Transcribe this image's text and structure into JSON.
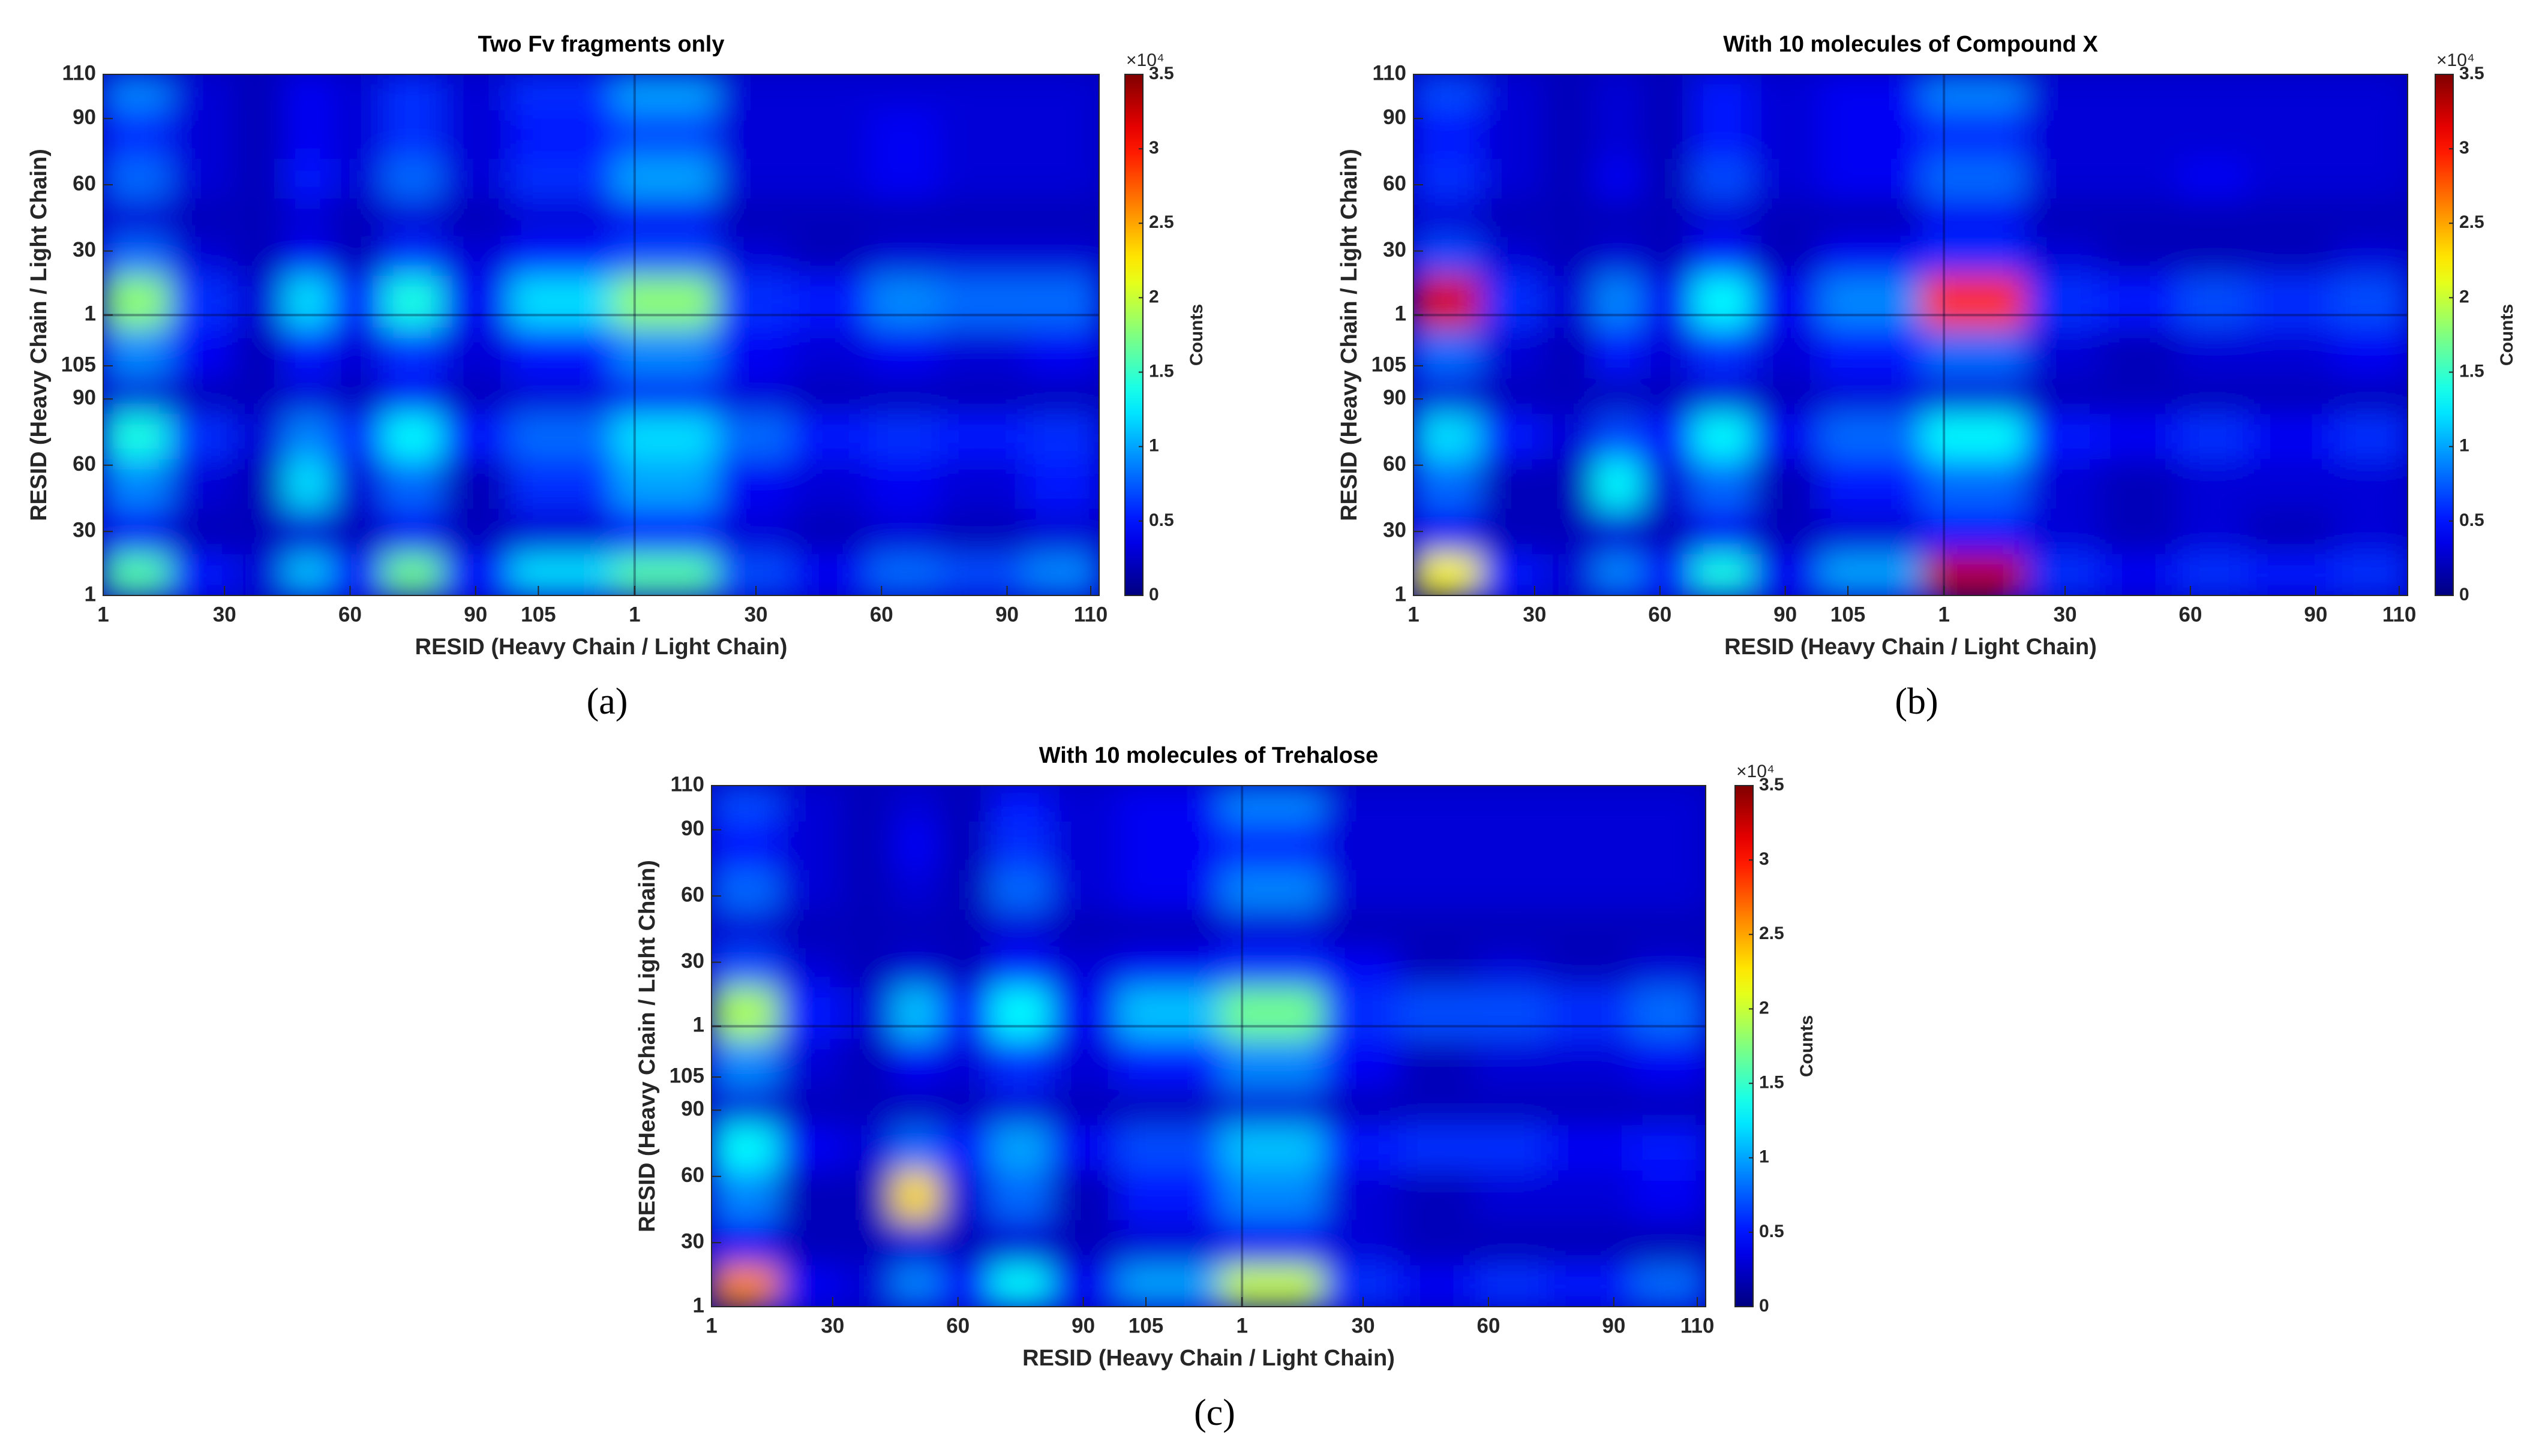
{
  "chart_data": [
    {
      "type": "heatmap",
      "title": "Two Fv fragments only",
      "panel_label": "(a)",
      "xlabel": "RESID (Heavy Chain / Light Chain)",
      "ylabel": "RESID (Heavy Chain / Light Chain)",
      "x": [
        10,
        24,
        40,
        49,
        62,
        74,
        90,
        107,
        139,
        156,
        175,
        193,
        209,
        234
      ],
      "y": [
        10,
        30,
        51,
        75,
        92,
        108,
        137,
        155,
        172,
        190,
        208,
        234
      ],
      "values": [
        [
          1.6,
          0.5,
          0.3,
          1.1,
          0.5,
          1.7,
          0.5,
          1.2,
          1.6,
          0.7,
          0.4,
          0.8,
          0.7,
          0.9
        ],
        [
          0.4,
          0.2,
          0.2,
          0.3,
          0.2,
          0.4,
          0.2,
          0.3,
          0.5,
          0.3,
          0.2,
          0.3,
          0.2,
          0.3
        ],
        [
          0.9,
          0.3,
          0.2,
          1.2,
          0.3,
          0.8,
          0.2,
          0.6,
          1.0,
          0.4,
          0.3,
          0.4,
          0.3,
          0.5
        ],
        [
          1.4,
          0.6,
          0.3,
          0.9,
          0.6,
          1.3,
          0.5,
          0.8,
          1.2,
          0.8,
          0.5,
          0.6,
          0.5,
          0.6
        ],
        [
          0.3,
          0.2,
          0.2,
          0.3,
          0.2,
          0.4,
          0.2,
          0.3,
          0.4,
          0.3,
          0.2,
          0.2,
          0.2,
          0.2
        ],
        [
          0.9,
          0.4,
          0.2,
          0.5,
          0.3,
          0.6,
          0.3,
          0.5,
          0.9,
          0.4,
          0.3,
          0.4,
          0.3,
          0.4
        ],
        [
          1.8,
          0.6,
          0.3,
          1.2,
          0.5,
          1.4,
          0.4,
          1.2,
          1.8,
          0.6,
          0.5,
          0.9,
          0.8,
          0.8
        ],
        [
          0.8,
          0.3,
          0.2,
          0.4,
          0.2,
          0.6,
          0.3,
          0.5,
          0.7,
          0.3,
          0.2,
          0.3,
          0.3,
          0.3
        ],
        [
          0.3,
          0.2,
          0.2,
          0.3,
          0.2,
          0.3,
          0.2,
          0.3,
          0.4,
          0.2,
          0.2,
          0.2,
          0.2,
          0.2
        ],
        [
          0.8,
          0.3,
          0.2,
          0.5,
          0.3,
          0.8,
          0.3,
          0.6,
          1.0,
          0.3,
          0.3,
          0.4,
          0.3,
          0.3
        ],
        [
          0.6,
          0.3,
          0.2,
          0.4,
          0.3,
          0.6,
          0.3,
          0.5,
          0.7,
          0.3,
          0.3,
          0.4,
          0.3,
          0.3
        ],
        [
          0.9,
          0.3,
          0.2,
          0.4,
          0.3,
          0.6,
          0.3,
          0.6,
          1.0,
          0.3,
          0.3,
          0.3,
          0.3,
          0.3
        ]
      ],
      "xlim": [
        1,
        239
      ],
      "ylim": [
        1,
        237
      ],
      "xticks": [
        1,
        30,
        60,
        90,
        105,
        {
          "value": 128,
          "label": "1"
        },
        {
          "value": 157,
          "label": "30"
        },
        {
          "value": 187,
          "label": "60"
        },
        {
          "value": 217,
          "label": "90"
        },
        {
          "value": 237,
          "label": "110"
        }
      ],
      "yticks": [
        1,
        30,
        60,
        90,
        105,
        {
          "value": 128,
          "label": "1"
        },
        {
          "value": 157,
          "label": "30"
        },
        {
          "value": 187,
          "label": "60"
        },
        {
          "value": 217,
          "label": "90"
        },
        {
          "value": 237,
          "label": "110"
        }
      ],
      "colormap": "jet",
      "zlim": [
        0,
        3.5
      ],
      "zticks": [
        0,
        0.5,
        1,
        1.5,
        2,
        2.5,
        3,
        3.5
      ],
      "colorbar_label": "Counts",
      "colorbar_exponent": "×10⁴"
    },
    {
      "type": "heatmap",
      "title": "With 10 molecules of Compound X",
      "panel_label": "(b)",
      "xlabel": "RESID (Heavy Chain / Light Chain)",
      "ylabel": "RESID (Heavy Chain / Light Chain)",
      "x": [
        10,
        24,
        40,
        49,
        62,
        74,
        90,
        107,
        139,
        156,
        175,
        193,
        209,
        234
      ],
      "y": [
        10,
        30,
        51,
        75,
        92,
        108,
        137,
        155,
        172,
        190,
        208,
        234
      ],
      "values": [
        [
          2.2,
          0.5,
          0.3,
          0.9,
          0.5,
          1.4,
          0.4,
          1.0,
          3.3,
          0.6,
          0.4,
          0.6,
          0.5,
          0.6
        ],
        [
          0.4,
          0.2,
          0.2,
          0.3,
          0.2,
          0.4,
          0.2,
          0.3,
          0.5,
          0.3,
          0.2,
          0.3,
          0.2,
          0.3
        ],
        [
          0.8,
          0.2,
          0.2,
          1.3,
          0.3,
          0.8,
          0.2,
          0.5,
          0.8,
          0.3,
          0.2,
          0.3,
          0.3,
          0.3
        ],
        [
          1.2,
          0.5,
          0.3,
          0.7,
          0.5,
          1.3,
          0.4,
          0.8,
          1.3,
          0.5,
          0.4,
          0.6,
          0.4,
          0.6
        ],
        [
          0.3,
          0.2,
          0.2,
          0.2,
          0.2,
          0.3,
          0.2,
          0.3,
          0.3,
          0.2,
          0.2,
          0.2,
          0.2,
          0.2
        ],
        [
          0.8,
          0.3,
          0.2,
          0.5,
          0.3,
          0.6,
          0.3,
          0.5,
          0.8,
          0.3,
          0.2,
          0.3,
          0.3,
          0.4
        ],
        [
          3.2,
          0.6,
          0.3,
          0.9,
          0.4,
          1.3,
          0.4,
          0.9,
          2.9,
          0.6,
          0.5,
          0.7,
          0.6,
          0.7
        ],
        [
          0.7,
          0.3,
          0.2,
          0.3,
          0.2,
          0.5,
          0.2,
          0.4,
          0.6,
          0.3,
          0.2,
          0.2,
          0.2,
          0.3
        ],
        [
          0.3,
          0.2,
          0.2,
          0.2,
          0.2,
          0.3,
          0.2,
          0.2,
          0.4,
          0.2,
          0.2,
          0.2,
          0.2,
          0.2
        ],
        [
          0.6,
          0.3,
          0.2,
          0.4,
          0.2,
          0.7,
          0.3,
          0.4,
          0.8,
          0.3,
          0.3,
          0.4,
          0.3,
          0.3
        ],
        [
          0.5,
          0.3,
          0.2,
          0.3,
          0.2,
          0.5,
          0.3,
          0.4,
          0.6,
          0.3,
          0.3,
          0.3,
          0.3,
          0.3
        ],
        [
          0.7,
          0.3,
          0.2,
          0.3,
          0.2,
          0.5,
          0.3,
          0.4,
          0.9,
          0.3,
          0.3,
          0.3,
          0.3,
          0.3
        ]
      ],
      "xlim": [
        1,
        239
      ],
      "ylim": [
        1,
        237
      ],
      "xticks": [
        1,
        30,
        60,
        90,
        105,
        {
          "value": 128,
          "label": "1"
        },
        {
          "value": 157,
          "label": "30"
        },
        {
          "value": 187,
          "label": "60"
        },
        {
          "value": 217,
          "label": "90"
        },
        {
          "value": 237,
          "label": "110"
        }
      ],
      "yticks": [
        1,
        30,
        60,
        90,
        105,
        {
          "value": 128,
          "label": "1"
        },
        {
          "value": 157,
          "label": "30"
        },
        {
          "value": 187,
          "label": "60"
        },
        {
          "value": 217,
          "label": "90"
        },
        {
          "value": 237,
          "label": "110"
        }
      ],
      "colormap": "jet",
      "zlim": [
        0,
        3.5
      ],
      "zticks": [
        0,
        0.5,
        1,
        1.5,
        2,
        2.5,
        3,
        3.5
      ],
      "colorbar_label": "Counts",
      "colorbar_exponent": "×10⁴"
    },
    {
      "type": "heatmap",
      "title": "With 10 molecules of Trehalose",
      "panel_label": "(c)",
      "xlabel": "RESID (Heavy Chain / Light Chain)",
      "ylabel": "RESID (Heavy Chain / Light Chain)",
      "x": [
        10,
        24,
        40,
        49,
        62,
        74,
        90,
        107,
        139,
        156,
        175,
        193,
        209,
        234
      ],
      "y": [
        10,
        30,
        51,
        75,
        92,
        108,
        137,
        155,
        172,
        190,
        208,
        234
      ],
      "values": [
        [
          2.6,
          0.4,
          0.3,
          0.9,
          0.5,
          1.3,
          0.4,
          1.0,
          2.0,
          0.6,
          0.4,
          0.6,
          0.5,
          0.8
        ],
        [
          0.4,
          0.2,
          0.2,
          0.3,
          0.2,
          0.3,
          0.2,
          0.3,
          0.4,
          0.3,
          0.2,
          0.2,
          0.2,
          0.2
        ],
        [
          0.9,
          0.2,
          0.2,
          2.3,
          0.3,
          0.8,
          0.2,
          0.5,
          0.9,
          0.3,
          0.2,
          0.3,
          0.3,
          0.4
        ],
        [
          1.3,
          0.4,
          0.3,
          0.8,
          0.5,
          1.0,
          0.4,
          0.7,
          1.1,
          0.5,
          0.6,
          0.6,
          0.4,
          0.5
        ],
        [
          0.3,
          0.2,
          0.2,
          0.2,
          0.2,
          0.3,
          0.2,
          0.2,
          0.3,
          0.2,
          0.2,
          0.2,
          0.2,
          0.2
        ],
        [
          0.9,
          0.3,
          0.2,
          0.4,
          0.3,
          0.6,
          0.3,
          0.5,
          0.9,
          0.4,
          0.2,
          0.3,
          0.3,
          0.4
        ],
        [
          1.9,
          0.5,
          0.3,
          1.1,
          0.5,
          1.3,
          0.4,
          1.1,
          1.7,
          0.6,
          0.7,
          0.7,
          0.6,
          0.8
        ],
        [
          0.7,
          0.3,
          0.2,
          0.3,
          0.2,
          0.5,
          0.3,
          0.4,
          0.6,
          0.4,
          0.2,
          0.3,
          0.2,
          0.3
        ],
        [
          0.3,
          0.2,
          0.2,
          0.2,
          0.2,
          0.3,
          0.2,
          0.2,
          0.3,
          0.2,
          0.2,
          0.2,
          0.2,
          0.2
        ],
        [
          0.8,
          0.3,
          0.2,
          0.3,
          0.2,
          0.8,
          0.3,
          0.4,
          0.9,
          0.3,
          0.3,
          0.3,
          0.3,
          0.3
        ],
        [
          0.5,
          0.3,
          0.2,
          0.4,
          0.2,
          0.6,
          0.3,
          0.4,
          0.6,
          0.3,
          0.3,
          0.3,
          0.3,
          0.3
        ],
        [
          0.7,
          0.3,
          0.2,
          0.3,
          0.2,
          0.5,
          0.3,
          0.4,
          0.9,
          0.3,
          0.3,
          0.3,
          0.3,
          0.3
        ]
      ],
      "xlim": [
        1,
        239
      ],
      "ylim": [
        1,
        237
      ],
      "xticks": [
        1,
        30,
        60,
        90,
        105,
        {
          "value": 128,
          "label": "1"
        },
        {
          "value": 157,
          "label": "30"
        },
        {
          "value": 187,
          "label": "60"
        },
        {
          "value": 217,
          "label": "90"
        },
        {
          "value": 237,
          "label": "110"
        }
      ],
      "yticks": [
        1,
        30,
        60,
        90,
        105,
        {
          "value": 128,
          "label": "1"
        },
        {
          "value": 157,
          "label": "30"
        },
        {
          "value": 187,
          "label": "60"
        },
        {
          "value": 217,
          "label": "90"
        },
        {
          "value": 237,
          "label": "110"
        }
      ],
      "colormap": "jet",
      "zlim": [
        0,
        3.5
      ],
      "zticks": [
        0,
        0.5,
        1,
        1.5,
        2,
        2.5,
        3,
        3.5
      ],
      "colorbar_label": "Counts",
      "colorbar_exponent": "×10⁴"
    }
  ]
}
